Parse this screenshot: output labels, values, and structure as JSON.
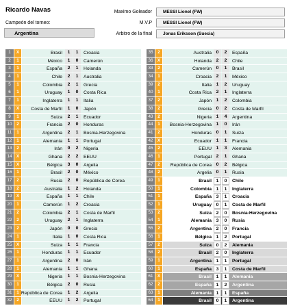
{
  "header": {
    "user_name": "Ricardo Navas",
    "torneo_label": "Campeón del torneo:",
    "champion": "Argentina",
    "maximo_goleador_label": "Maximo Goleador",
    "maximo_goleador": "MESSI Lionel (FW)",
    "mvp_label": "M.V.P",
    "mvp": "MESSI Lionel (FW)",
    "arbitro_label": "Arbitro de la final",
    "arbitro": "Jonas Eriksson (Suecia)"
  },
  "colors": {
    "points_orange": "#f5a623",
    "row_mint": "#e3f3ee",
    "row_light": "#d9d9d9",
    "row_mid": "#a6a6a6",
    "row_dark": "#7f7f7f",
    "row_black": "#3a3a3a"
  },
  "left_matches": [
    {
      "n": "1",
      "p": "X",
      "home": "Brasil",
      "hs": "1",
      "as": "1",
      "away": "Croacia"
    },
    {
      "n": "2",
      "p": "1",
      "home": "México",
      "hs": "1",
      "as": "0",
      "away": "Camerún"
    },
    {
      "n": "3",
      "p": "1",
      "home": "España",
      "hs": "2",
      "as": "1",
      "away": "Holanda"
    },
    {
      "n": "4",
      "p": "1",
      "home": "Chile",
      "hs": "2",
      "as": "1",
      "away": "Australia"
    },
    {
      "n": "5",
      "p": "1",
      "home": "Colombia",
      "hs": "2",
      "as": "1",
      "away": "Grecia"
    },
    {
      "n": "6",
      "p": "1",
      "home": "Uruguay",
      "hs": "1",
      "as": "0",
      "away": "Costa Rica"
    },
    {
      "n": "7",
      "p": "1",
      "home": "Inglaterra",
      "hs": "1",
      "as": "1",
      "away": "Italia"
    },
    {
      "n": "8",
      "p": "X",
      "home": "Costa de Marfil",
      "hs": "1",
      "as": "0",
      "away": "Japón"
    },
    {
      "n": "9",
      "p": "1",
      "home": "Suiza",
      "hs": "2",
      "as": "1",
      "away": "Ecuador"
    },
    {
      "n": "10",
      "p": "2",
      "home": "Francia",
      "hs": "2",
      "as": "0",
      "away": "Honduras"
    },
    {
      "n": "11",
      "p": "1",
      "home": "Argentina",
      "hs": "2",
      "as": "1",
      "away": "Bosnia-Herzegovina"
    },
    {
      "n": "12",
      "p": "1",
      "home": "Alemania",
      "hs": "1",
      "as": "1",
      "away": "Portugal"
    },
    {
      "n": "13",
      "p": "2",
      "home": "Irán",
      "hs": "0",
      "as": "2",
      "away": "Nigeria"
    },
    {
      "n": "14",
      "p": "X",
      "home": "Ghana",
      "hs": "2",
      "as": "2",
      "away": "EEUU"
    },
    {
      "n": "15",
      "p": "X",
      "home": "Bélgica",
      "hs": "3",
      "as": "0",
      "away": "Argelia"
    },
    {
      "n": "16",
      "p": "1",
      "home": "Brasil",
      "hs": "2",
      "as": "0",
      "away": "México"
    },
    {
      "n": "17",
      "p": "2",
      "home": "Rusia",
      "hs": "2",
      "as": "0",
      "away": "República de Corea"
    },
    {
      "n": "18",
      "p": "2",
      "home": "Australia",
      "hs": "1",
      "as": "2",
      "away": "Holanda"
    },
    {
      "n": "19",
      "p": "X",
      "home": "España",
      "hs": "1",
      "as": "1",
      "away": "Chile"
    },
    {
      "n": "20",
      "p": "1",
      "home": "Camerún",
      "hs": "1",
      "as": "2",
      "away": "Croacia"
    },
    {
      "n": "21",
      "p": "2",
      "home": "Colombia",
      "hs": "2",
      "as": "1",
      "away": "Costa de Marfil"
    },
    {
      "n": "22",
      "p": "2",
      "home": "Uruguay",
      "hs": "2",
      "as": "1",
      "away": "Inglaterra"
    },
    {
      "n": "23",
      "p": "2",
      "home": "Japón",
      "hs": "0",
      "as": "0",
      "away": "Grecia"
    },
    {
      "n": "24",
      "p": "1",
      "home": "Italia",
      "hs": "1",
      "as": "0",
      "away": "Costa Rica"
    },
    {
      "n": "25",
      "p": "X",
      "home": "Suiza",
      "hs": "1",
      "as": "1",
      "away": "Francia"
    },
    {
      "n": "26",
      "p": "1",
      "home": "Honduras",
      "hs": "1",
      "as": "1",
      "away": "Ecuador"
    },
    {
      "n": "27",
      "p": "1",
      "home": "Argentina",
      "hs": "2",
      "as": "0",
      "away": "Irán"
    },
    {
      "n": "28",
      "p": "1",
      "home": "Alemania",
      "hs": "1",
      "as": "1",
      "away": "Ghana"
    },
    {
      "n": "29",
      "p": "X",
      "home": "Nigeria",
      "hs": "1",
      "as": "1",
      "away": "Bosnia-Herzegovina"
    },
    {
      "n": "30",
      "p": "1",
      "home": "Bélgica",
      "hs": "2",
      "as": "0",
      "away": "Rusia"
    },
    {
      "n": "31",
      "p": "1",
      "home": "República de Corea",
      "hs": "1",
      "as": "2",
      "away": "Argelia"
    },
    {
      "n": "32",
      "p": "2",
      "home": "EEUU",
      "hs": "1",
      "as": "2",
      "away": "Portugal"
    }
  ],
  "right_matches": [
    {
      "n": "35",
      "p": "2",
      "home": "Australia",
      "hs": "0",
      "as": "2",
      "away": "España"
    },
    {
      "n": "36",
      "p": "X",
      "home": "Holanda",
      "hs": "2",
      "as": "2",
      "away": "Chile"
    },
    {
      "n": "33",
      "p": "2",
      "home": "Camerún",
      "hs": "0",
      "as": "1",
      "away": "Brasil"
    },
    {
      "n": "34",
      "p": "1",
      "home": "Croacia",
      "hs": "2",
      "as": "1",
      "away": "México"
    },
    {
      "n": "39",
      "p": "2",
      "home": "Italia",
      "hs": "1",
      "as": "2",
      "away": "Uruguay"
    },
    {
      "n": "40",
      "p": "1",
      "home": "Costa Rica",
      "hs": "2",
      "as": "1",
      "away": "Inglaterra"
    },
    {
      "n": "37",
      "p": "2",
      "home": "Japón",
      "hs": "1",
      "as": "2",
      "away": "Colombia"
    },
    {
      "n": "38",
      "p": "2",
      "home": "Grecia",
      "hs": "0",
      "as": "2",
      "away": "Costa de Marfil"
    },
    {
      "n": "43",
      "p": "2",
      "home": "Nigeria",
      "hs": "1",
      "as": "4",
      "away": "Argentina"
    },
    {
      "n": "44",
      "p": "1",
      "home": "Bosnia-Herzegovina",
      "hs": "1",
      "as": "0",
      "away": "Irán"
    },
    {
      "n": "41",
      "p": "2",
      "home": "Honduras",
      "hs": "0",
      "as": "1",
      "away": "Suiza"
    },
    {
      "n": "42",
      "p": "X",
      "home": "Ecuador",
      "hs": "1",
      "as": "1",
      "away": "Francia"
    },
    {
      "n": "45",
      "p": "2",
      "home": "EEUU",
      "hs": "1",
      "as": "3",
      "away": "Alemania"
    },
    {
      "n": "46",
      "p": "1",
      "home": "Portugal",
      "hs": "2",
      "as": "1",
      "away": "Ghana"
    },
    {
      "n": "47",
      "p": "2",
      "home": "República de Corea",
      "hs": "0",
      "as": "2",
      "away": "Bélgica"
    },
    {
      "n": "48",
      "p": "2",
      "home": "Argelia",
      "hs": "0",
      "as": "1",
      "away": "Rusia"
    },
    {
      "n": "49",
      "p": "1",
      "home": "Brasil",
      "hs": "1",
      "as": "0",
      "away": "Chile"
    },
    {
      "n": "50",
      "p": "1",
      "home": "Colombia",
      "hs": "1",
      "as": "1",
      "away": "Inglaterra"
    },
    {
      "n": "51",
      "p": "1",
      "home": "España",
      "hs": "3",
      "as": "1",
      "away": "Croacia"
    },
    {
      "n": "52",
      "p": "1",
      "home": "Uruguay",
      "hs": "0",
      "as": "1",
      "away": "Costa de Marfil"
    },
    {
      "n": "53",
      "p": "2",
      "home": "Suiza",
      "hs": "2",
      "as": "0",
      "away": "Bosnia-Herzegovina"
    },
    {
      "n": "54",
      "p": "1",
      "home": "Alemania",
      "hs": "3",
      "as": "0",
      "away": "Rusia"
    },
    {
      "n": "55",
      "p": "2",
      "home": "Argentina",
      "hs": "2",
      "as": "0",
      "away": "Francia"
    },
    {
      "n": "56",
      "p": "1",
      "home": "Bélgica",
      "hs": "1",
      "as": "2",
      "away": "Portugal"
    },
    {
      "n": "57",
      "p": "2",
      "home": "Suiza",
      "hs": "0",
      "as": "2",
      "away": "Alemania"
    },
    {
      "n": "58",
      "p": "2",
      "home": "Brasil",
      "hs": "2",
      "as": "0",
      "away": "Inglaterra"
    },
    {
      "n": "59",
      "p": "1",
      "home": "Argentina",
      "hs": "1",
      "as": "1",
      "away": "Portugal"
    },
    {
      "n": "60",
      "p": "1",
      "home": "España",
      "hs": "3",
      "as": "1",
      "away": "Costa de Marfil"
    },
    {
      "n": "61",
      "p": "X",
      "home": "Brasil",
      "hs": "1",
      "as": "1",
      "away": "Alemania"
    },
    {
      "n": "62",
      "p": "2",
      "home": "España",
      "hs": "1",
      "as": "2",
      "away": "Argentina"
    },
    {
      "n": "63",
      "p": "1",
      "home": "Alemania",
      "hs": "1",
      "as": "1",
      "away": "España"
    },
    {
      "n": "64",
      "p": "1",
      "home": "Brasil",
      "hs": "0",
      "as": "1",
      "away": "Argentina"
    }
  ]
}
